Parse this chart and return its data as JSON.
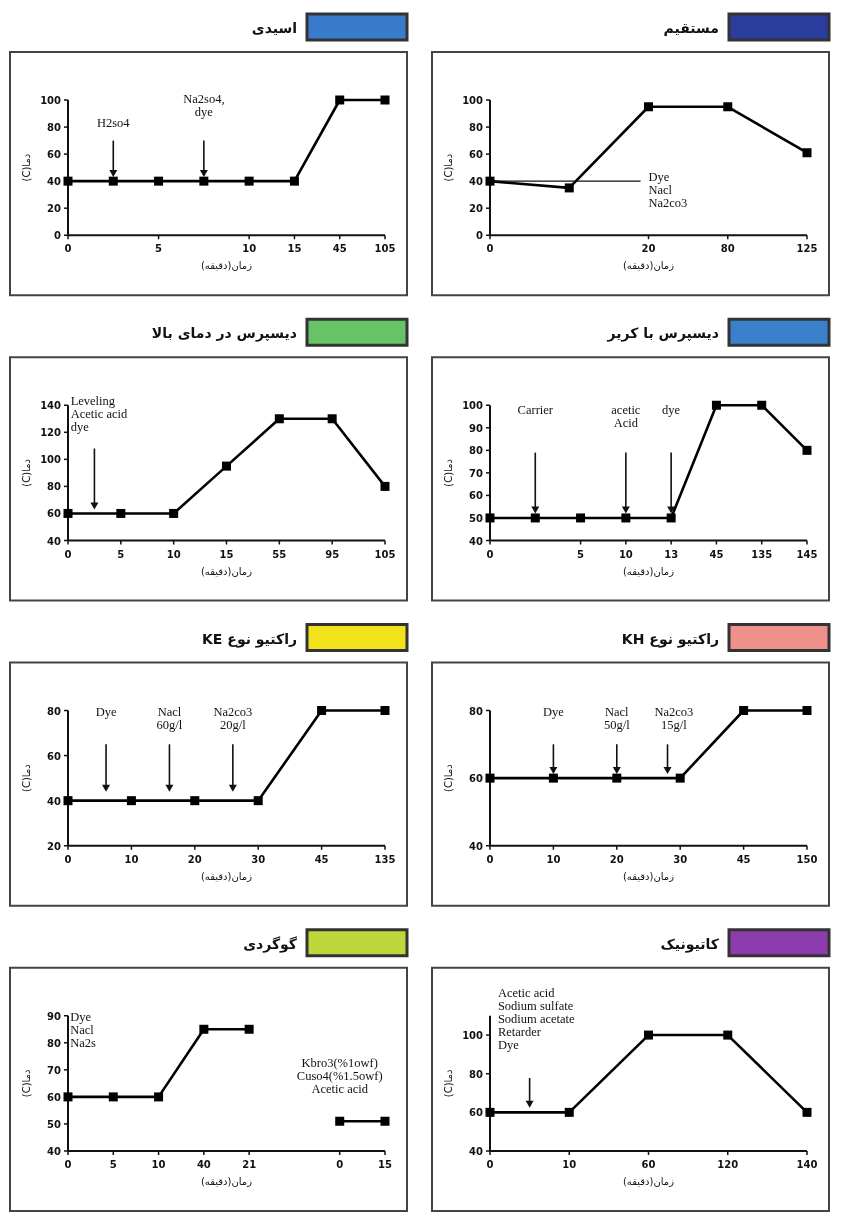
{
  "chart_data": [
    {
      "type": "line",
      "title": "اسیدی",
      "xlabel": "زمان(دقیقه)",
      "ylabel": "دما(C)",
      "marker": "square",
      "categories": [
        "0",
        null,
        "5",
        null,
        "10",
        "15",
        "45",
        "105"
      ],
      "ylim": [
        0,
        100
      ],
      "yticks": [
        0,
        20,
        40,
        60,
        80,
        100
      ],
      "series": [
        {
          "color": "#000000",
          "values": [
            40,
            40,
            40,
            40,
            40,
            40,
            100,
            100
          ]
        }
      ],
      "annotations": [
        "H2so4",
        "Na2so4,\ndye"
      ]
    },
    {
      "type": "line",
      "title": "مستقیم",
      "xlabel": "زمان(دقیقه)",
      "ylabel": "دما(C)",
      "marker": "square",
      "categories": [
        "0",
        null,
        "20",
        "80",
        "125"
      ],
      "ylim": [
        0,
        100
      ],
      "yticks": [
        0,
        20,
        40,
        60,
        80,
        100
      ],
      "series": [
        {
          "color": "#000000",
          "values": [
            40,
            35,
            95,
            95,
            61
          ]
        }
      ],
      "annotations": [
        {
          "text": "Dye\nNacl\nNa2co3",
          "x": "0",
          "y": 40
        }
      ]
    },
    {
      "type": "line",
      "title": "دیسپرس در دمای بالا",
      "xlabel": "زمان(دقیقه)",
      "ylabel": "دما(C)",
      "marker": "square",
      "categories": [
        "0",
        "5",
        "10",
        "15",
        "55",
        "95",
        "105"
      ],
      "ylim": [
        40,
        140
      ],
      "yticks": [
        40,
        60,
        80,
        100,
        120,
        140
      ],
      "series": [
        {
          "color": "#000000",
          "values": [
            60,
            60,
            60,
            95,
            130,
            130,
            80
          ]
        }
      ],
      "annotations": [
        "Leveling\nAcetic acid\ndye"
      ]
    },
    {
      "type": "line",
      "title": "دیسپرس با کریر",
      "xlabel": "زمان(دقیقه)",
      "ylabel": "دما(C)",
      "marker": "square",
      "categories": [
        "0",
        null,
        "5",
        "10",
        "13",
        "45",
        "135",
        "145"
      ],
      "ylim": [
        40,
        100
      ],
      "yticks": [
        40,
        50,
        60,
        70,
        80,
        90,
        100
      ],
      "series": [
        {
          "color": "#000000",
          "values": [
            50,
            50,
            50,
            50,
            50,
            100,
            100,
            80
          ]
        }
      ],
      "annotations": [
        "Carrier",
        "acetic\nAcid",
        "dye"
      ]
    },
    {
      "type": "line",
      "title": "راکتیو نوع KE",
      "xlabel": "زمان(دقیقه)",
      "ylabel": "دما(C)",
      "marker": "square",
      "categories": [
        "0",
        "10",
        "20",
        "30",
        "45",
        "135"
      ],
      "ylim": [
        20,
        80
      ],
      "yticks": [
        20,
        40,
        60,
        80
      ],
      "series": [
        {
          "color": "#000000",
          "values": [
            40,
            40,
            40,
            40,
            80,
            80
          ]
        }
      ],
      "annotations": [
        "Dye",
        "Nacl\n60g/l",
        "Na2co3\n20g/l"
      ]
    },
    {
      "type": "line",
      "title": "راکتیو نوع KH",
      "xlabel": "زمان(دقیقه)",
      "ylabel": "دما(C)",
      "marker": "square",
      "categories": [
        "0",
        "10",
        "20",
        "30",
        "45",
        "150"
      ],
      "ylim": [
        40,
        80
      ],
      "yticks": [
        40,
        60,
        80
      ],
      "series": [
        {
          "color": "#000000",
          "values": [
            60,
            60,
            60,
            60,
            80,
            80
          ]
        }
      ],
      "annotations": [
        "Dye",
        "Nacl\n50g/l",
        "Na2co3\n15g/l"
      ]
    },
    {
      "type": "line",
      "title": "گوگردی",
      "xlabel": "زمان(دقیقه)",
      "ylabel": "دما(C)",
      "marker": "square",
      "categories": [
        "0",
        "5",
        "10",
        "40",
        "21",
        null,
        "0",
        "15"
      ],
      "ylim": [
        40,
        90
      ],
      "yticks": [
        40,
        50,
        60,
        70,
        80,
        90
      ],
      "series": [
        {
          "color": "#000000",
          "values": [
            60,
            60,
            60,
            85,
            85,
            null,
            51,
            51
          ]
        }
      ],
      "annotations": [
        "Dye\nNacl\nNa2s",
        "Kbro3(%1owf)\nCuso4(%1.5owf)\nAcetic acid"
      ]
    },
    {
      "type": "line",
      "title": "کاتیونیک",
      "xlabel": "زمان(دقیقه)",
      "ylabel": "دما(C)",
      "marker": "square",
      "categories": [
        "0",
        "10",
        "60",
        "120",
        "140"
      ],
      "ylim": [
        40,
        110
      ],
      "yticks": [
        40,
        60,
        80,
        100
      ],
      "series": [
        {
          "color": "#000000",
          "values": [
            60,
            60,
            100,
            100,
            60
          ]
        }
      ],
      "annotations": [
        "Acetic acid\nSodium sulfate\nSodium acetate\nRetarder\nDye"
      ]
    }
  ]
}
